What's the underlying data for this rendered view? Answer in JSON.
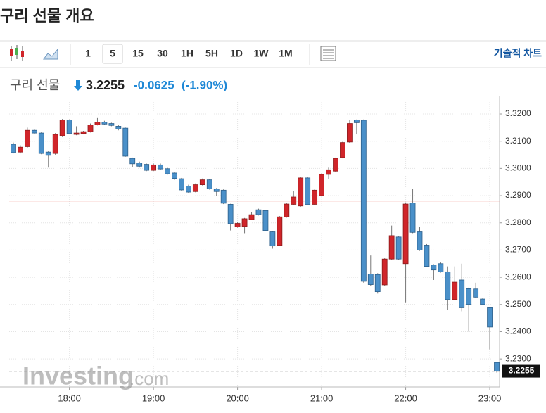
{
  "header": {
    "title": "구리 선물 개요"
  },
  "toolbar": {
    "intervals": [
      "1",
      "5",
      "15",
      "30",
      "1H",
      "5H",
      "1D",
      "1W",
      "1M"
    ],
    "selected_index": 1,
    "tech_chart": "기술적 차트"
  },
  "quote": {
    "name": "구리 선물",
    "price": "3.2255",
    "change": "-0.0625",
    "change_pct": "(-1.90%)"
  },
  "watermark": {
    "brand": "Investing",
    "suffix": ".com"
  },
  "chart_data": {
    "type": "candlestick",
    "up_color": "#d0252a",
    "down_color": "#4a90c9",
    "grid": true,
    "x": [
      1040,
      1045,
      1050,
      1055,
      1060,
      1065,
      1070,
      1075,
      1080,
      1085,
      1090,
      1095,
      1100,
      1105,
      1110,
      1115,
      1120,
      1125,
      1130,
      1135,
      1140,
      1145,
      1150,
      1155,
      1160,
      1165,
      1170,
      1175,
      1180,
      1185,
      1190,
      1195,
      1200,
      1205,
      1210,
      1215,
      1220,
      1225,
      1230,
      1235,
      1240,
      1245,
      1250,
      1255,
      1260,
      1265,
      1270,
      1275,
      1280,
      1285,
      1290,
      1295,
      1300,
      1305,
      1310,
      1315,
      1320,
      1325,
      1330,
      1335,
      1340,
      1345,
      1350,
      1355,
      1360,
      1365,
      1370,
      1375,
      1380,
      1385
    ],
    "open": [
      3.3089,
      3.306,
      3.308,
      3.314,
      3.313,
      3.306,
      3.3055,
      3.312,
      3.3178,
      3.3125,
      3.3128,
      3.3135,
      3.316,
      3.317,
      3.3165,
      3.3155,
      3.3148,
      3.3037,
      3.302,
      3.3015,
      3.2993,
      3.3013,
      3.2999,
      3.2983,
      3.2962,
      3.2935,
      3.2915,
      3.294,
      3.2958,
      3.2925,
      3.292,
      3.2868,
      3.2785,
      3.2787,
      3.2812,
      3.2848,
      3.2845,
      3.2767,
      3.2717,
      3.2822,
      3.2868,
      3.2862,
      3.2965,
      3.2868,
      3.29,
      3.2978,
      3.299,
      3.304,
      3.3097,
      3.3178,
      3.3177,
      3.2612,
      3.261,
      3.2572,
      3.2667,
      3.2748,
      3.265,
      3.2873,
      3.2767,
      3.2718,
      3.2645,
      3.265,
      3.262,
      3.2518,
      3.259,
      3.2558,
      3.2557,
      3.252,
      3.2488,
      3.2287
    ],
    "high": [
      3.3095,
      3.3085,
      3.315,
      3.3145,
      3.3135,
      3.3065,
      3.313,
      3.3182,
      3.318,
      3.3155,
      3.3138,
      3.3165,
      3.3185,
      3.3175,
      3.3168,
      3.316,
      3.315,
      3.304,
      3.3025,
      3.3018,
      3.3018,
      3.3018,
      3.3002,
      3.2986,
      3.2965,
      3.294,
      3.2945,
      3.2963,
      3.2962,
      3.2928,
      3.2923,
      3.287,
      3.2802,
      3.2818,
      3.284,
      3.2852,
      3.2848,
      3.277,
      3.2825,
      3.2872,
      3.2918,
      3.2968,
      3.2968,
      3.2923,
      3.2982,
      3.3003,
      3.304,
      3.3098,
      3.3178,
      3.318,
      3.318,
      3.268,
      3.2615,
      3.267,
      3.279,
      3.2752,
      3.2875,
      3.2925,
      3.2785,
      3.2722,
      3.2648,
      3.2655,
      3.264,
      3.264,
      3.265,
      3.2562,
      3.258,
      3.2523,
      3.249,
      3.229
    ],
    "low": [
      3.3055,
      3.3055,
      3.3075,
      3.3125,
      3.3052,
      3.3003,
      3.305,
      3.3115,
      3.3125,
      3.3122,
      3.3125,
      3.3132,
      3.3158,
      3.316,
      3.3155,
      3.314,
      3.3043,
      3.3005,
      3.3003,
      3.299,
      3.299,
      3.2995,
      3.2977,
      3.2958,
      3.2918,
      3.291,
      3.2912,
      3.2937,
      3.2922,
      3.29,
      3.2869,
      3.2772,
      3.2782,
      3.2762,
      3.281,
      3.2827,
      3.2769,
      3.2705,
      3.2714,
      3.2819,
      3.2865,
      3.2859,
      3.2864,
      3.2865,
      3.2897,
      3.2962,
      3.2987,
      3.3037,
      3.3094,
      3.3125,
      3.258,
      3.2568,
      3.254,
      3.2568,
      3.2664,
      3.2664,
      3.2508,
      3.2762,
      3.2697,
      3.2637,
      3.259,
      3.2617,
      3.248,
      3.2515,
      3.2475,
      3.24,
      3.2524,
      3.2497,
      3.2335,
      3.225
    ],
    "close": [
      3.3058,
      3.3078,
      3.314,
      3.313,
      3.3055,
      3.3048,
      3.3125,
      3.3178,
      3.3128,
      3.313,
      3.3135,
      3.316,
      3.317,
      3.3163,
      3.3158,
      3.3145,
      3.3045,
      3.3017,
      3.3008,
      3.2993,
      3.3013,
      3.2998,
      3.298,
      3.2963,
      3.2921,
      3.2913,
      3.294,
      3.2958,
      3.2925,
      3.2915,
      3.2872,
      3.2797,
      3.2798,
      3.2815,
      3.283,
      3.283,
      3.2772,
      3.2715,
      3.2822,
      3.2869,
      3.2895,
      3.2965,
      3.2867,
      3.292,
      3.2978,
      3.2995,
      3.3037,
      3.3095,
      3.3165,
      3.3168,
      3.2585,
      3.2573,
      3.2547,
      3.2667,
      3.2753,
      3.2667,
      3.2869,
      3.2765,
      3.27,
      3.264,
      3.2627,
      3.262,
      3.2518,
      3.2582,
      3.2488,
      3.25,
      3.2527,
      3.25,
      3.2417,
      3.2255
    ],
    "last_price_label": "3.2255",
    "ref_line": {
      "value": 3.288,
      "color": "#f2a49e"
    },
    "xlim": [
      1037,
      1387
    ],
    "xticks": [
      {
        "value": 1080,
        "label": "18:00"
      },
      {
        "value": 1140,
        "label": "19:00"
      },
      {
        "value": 1200,
        "label": "20:00"
      },
      {
        "value": 1260,
        "label": "21:00"
      },
      {
        "value": 1320,
        "label": "22:00"
      },
      {
        "value": 1380,
        "label": "23:00"
      }
    ],
    "ylim": [
      3.2197,
      3.3244
    ],
    "yticks": [
      {
        "value": 3.23,
        "label": "3.2300"
      },
      {
        "value": 3.24,
        "label": "3.2400"
      },
      {
        "value": 3.25,
        "label": "3.2500"
      },
      {
        "value": 3.26,
        "label": "3.2600"
      },
      {
        "value": 3.27,
        "label": "3.2700"
      },
      {
        "value": 3.28,
        "label": "3.2800"
      },
      {
        "value": 3.29,
        "label": "3.2900"
      },
      {
        "value": 3.3,
        "label": "3.3000"
      },
      {
        "value": 3.31,
        "label": "3.3100"
      },
      {
        "value": 3.32,
        "label": "3.3200"
      }
    ]
  }
}
